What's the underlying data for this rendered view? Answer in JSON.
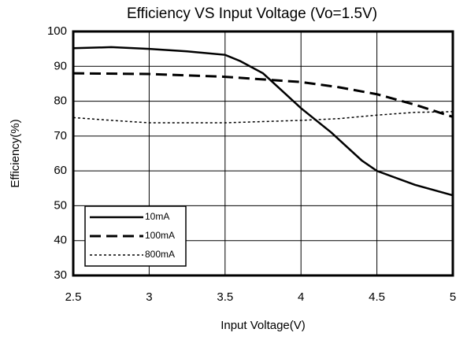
{
  "chart_data": {
    "type": "line",
    "title": "Efficiency VS Input Voltage (Vo=1.5V)",
    "xlabel": "Input Voltage(V)",
    "ylabel": "Efficiency(%)",
    "xlim": [
      2.5,
      5
    ],
    "xticks": [
      2.5,
      3,
      3.5,
      4,
      4.5,
      5
    ],
    "ylim": [
      30,
      100
    ],
    "yticks": [
      30,
      40,
      50,
      60,
      70,
      80,
      90,
      100
    ],
    "grid": true,
    "legend": "lower left",
    "series": [
      {
        "name": "10mA",
        "color": "#000000",
        "style": "solid",
        "x": [
          2.5,
          2.75,
          3,
          3.25,
          3.5,
          3.6,
          3.75,
          3.9,
          4,
          4.2,
          4.3,
          4.4,
          4.5,
          4.75,
          5
        ],
        "values": [
          95.2,
          95.5,
          95,
          94.3,
          93.3,
          91.5,
          88,
          82,
          78,
          71,
          67,
          63,
          60,
          56,
          53
        ]
      },
      {
        "name": "100mA",
        "color": "#000000",
        "style": "dashed",
        "x": [
          2.5,
          3,
          3.5,
          4,
          4.25,
          4.5,
          4.75,
          5
        ],
        "values": [
          88,
          87.8,
          87,
          85.5,
          84,
          82,
          79,
          75.5
        ]
      },
      {
        "name": "800mA",
        "color": "#000000",
        "style": "dotted",
        "x": [
          2.5,
          2.75,
          3,
          3.5,
          4,
          4.25,
          4.5,
          4.75,
          5
        ],
        "values": [
          75.3,
          74.5,
          73.8,
          73.8,
          74.5,
          75,
          76,
          76.8,
          77
        ]
      }
    ]
  }
}
